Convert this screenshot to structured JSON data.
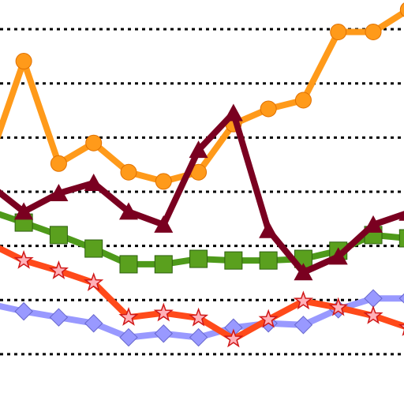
{
  "chart_data": {
    "type": "line",
    "x": [
      -1,
      0,
      1,
      2,
      3,
      4,
      5,
      6,
      7,
      8,
      9,
      10,
      11
    ],
    "xlim": [
      -0.68,
      10.88
    ],
    "ylim": [
      -0.92,
      6.54
    ],
    "yticks": [
      0,
      1,
      2,
      3,
      4,
      5,
      6
    ],
    "grid": true,
    "series": [
      {
        "color": "#ff9a1a",
        "marker": "circle",
        "values": [
          3.54,
          5.41,
          3.52,
          3.9,
          3.36,
          3.19,
          3.36,
          4.25,
          4.53,
          4.69,
          5.95,
          5.95,
          6.36
        ]
      },
      {
        "color": "#4e9a1a",
        "marker": "square",
        "values": [
          2.65,
          2.43,
          2.2,
          1.95,
          1.66,
          1.66,
          1.76,
          1.73,
          1.73,
          1.76,
          1.91,
          2.2,
          2.14
        ]
      },
      {
        "color": "#7a0020",
        "marker": "triangle",
        "values": [
          3.14,
          2.63,
          2.97,
          3.16,
          2.63,
          2.39,
          3.77,
          4.45,
          2.29,
          1.51,
          1.8,
          2.39,
          2.61
        ]
      },
      {
        "color": "#9999ff",
        "marker": "diamond",
        "values": [
          0.93,
          0.79,
          0.68,
          0.57,
          0.31,
          0.38,
          0.31,
          0.49,
          0.57,
          0.54,
          0.83,
          1.03,
          1.03
        ]
      },
      {
        "color": "#ff4a1a",
        "marker": "star",
        "values": [
          2.05,
          1.73,
          1.54,
          1.32,
          0.68,
          0.76,
          0.67,
          0.28,
          0.64,
          0.98,
          0.86,
          0.71,
          0.49
        ]
      }
    ]
  }
}
